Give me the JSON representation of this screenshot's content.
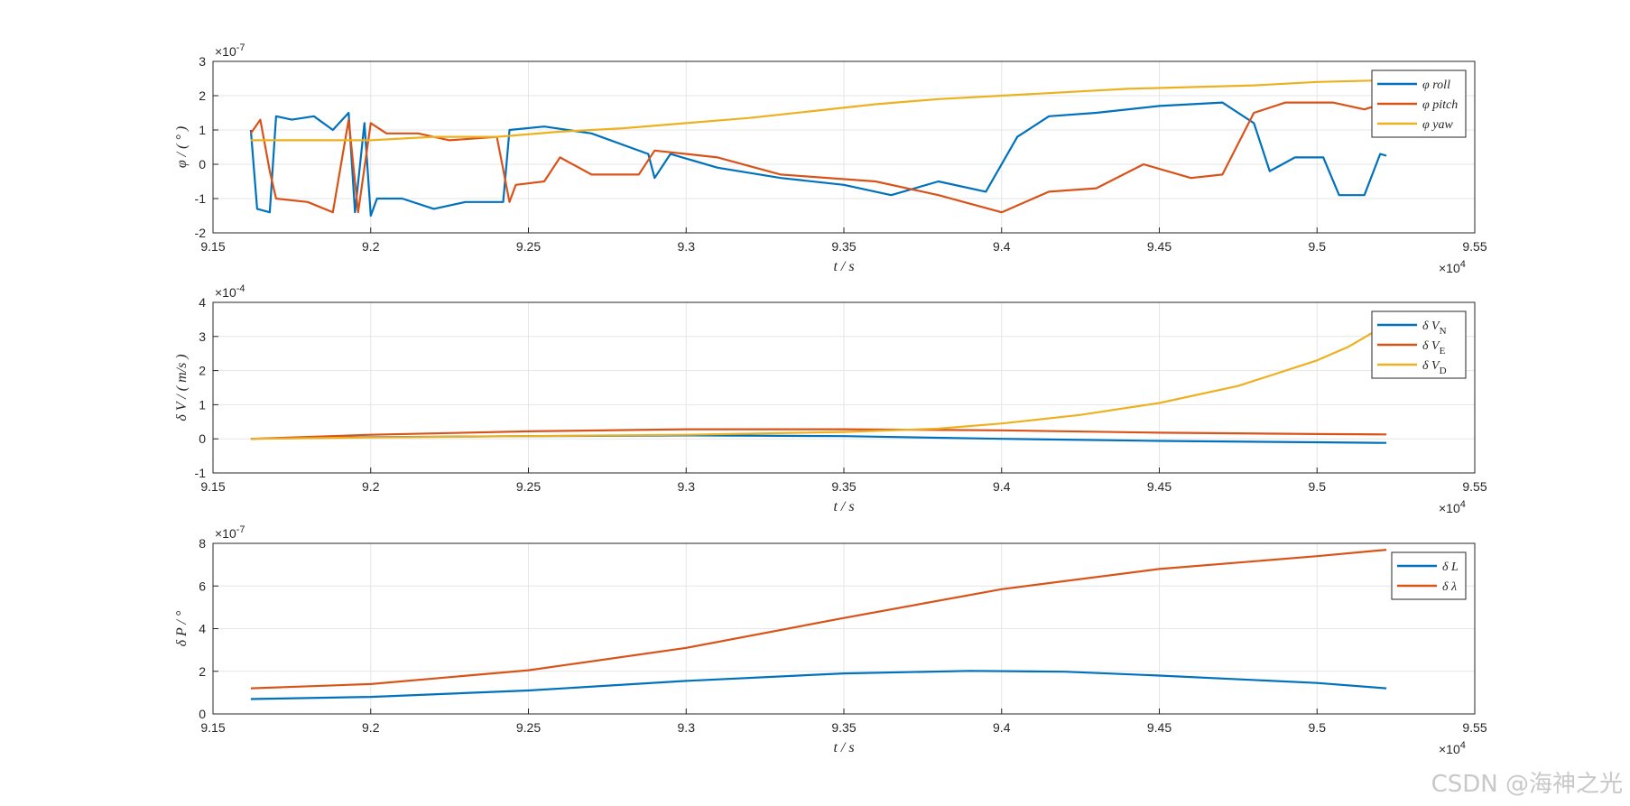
{
  "watermark": "CSDN @海神之光",
  "colors": {
    "series1": "#0072BD",
    "series2": "#D95319",
    "series3": "#EDB120",
    "grid": "#e6e6e6",
    "axis": "#262626"
  },
  "chart_data": [
    {
      "type": "line",
      "xlabel": "t  / s",
      "ylabel": "φ / ( ° )",
      "xlim": [
        91500,
        95500
      ],
      "ylim": [
        -2e-07,
        3e-07
      ],
      "xticks": [
        91500,
        92000,
        92500,
        93000,
        93500,
        94000,
        94500,
        95000,
        95500
      ],
      "xtick_labels": [
        "9.15",
        "9.2",
        "9.25",
        "9.3",
        "9.35",
        "9.4",
        "9.45",
        "9.5",
        "9.55"
      ],
      "x_exponent_label": "×10",
      "x_exponent_power": "4",
      "yticks": [
        -2,
        -1,
        0,
        1,
        2,
        3
      ],
      "ytick_labels": [
        "-2",
        "-1",
        "0",
        "1",
        "2",
        "3"
      ],
      "y_exponent_label": "×10",
      "y_exponent_power": "-7",
      "grid": true,
      "legend_position": "top-right",
      "series": [
        {
          "name": "φ roll",
          "values": [
            [
              91620,
              1e-07
            ],
            [
              91640,
              -1.3e-07
            ],
            [
              91680,
              -1.4e-07
            ],
            [
              91700,
              1.4e-07
            ],
            [
              91750,
              1.3e-07
            ],
            [
              91820,
              1.4e-07
            ],
            [
              91880,
              1e-07
            ],
            [
              91930,
              1.5e-07
            ],
            [
              91950,
              -1.4e-07
            ],
            [
              91980,
              1.2e-07
            ],
            [
              92000,
              -1.5e-07
            ],
            [
              92020,
              -1e-07
            ],
            [
              92100,
              -1e-07
            ],
            [
              92200,
              -1.3e-07
            ],
            [
              92300,
              -1.1e-07
            ],
            [
              92420,
              -1.1e-07
            ],
            [
              92440,
              1e-07
            ],
            [
              92550,
              1.1e-07
            ],
            [
              92700,
              9e-08
            ],
            [
              92880,
              3e-08
            ],
            [
              92900,
              -4e-08
            ],
            [
              92950,
              3e-08
            ],
            [
              93100,
              -1e-08
            ],
            [
              93300,
              -4e-08
            ],
            [
              93500,
              -6e-08
            ],
            [
              93650,
              -9e-08
            ],
            [
              93800,
              -5e-08
            ],
            [
              93950,
              -8e-08
            ],
            [
              94050,
              8e-08
            ],
            [
              94150,
              1.4e-07
            ],
            [
              94300,
              1.5e-07
            ],
            [
              94500,
              1.7e-07
            ],
            [
              94700,
              1.8e-07
            ],
            [
              94800,
              1.2e-07
            ],
            [
              94850,
              -2e-08
            ],
            [
              94930,
              2e-08
            ],
            [
              95020,
              2e-08
            ],
            [
              95070,
              -9e-08
            ],
            [
              95150,
              -9e-08
            ],
            [
              95200,
              3e-08
            ],
            [
              95220,
              2.5e-08
            ]
          ]
        },
        {
          "name": "φ pitch",
          "values": [
            [
              91620,
              9e-08
            ],
            [
              91650,
              1.3e-07
            ],
            [
              91680,
              -2e-08
            ],
            [
              91700,
              -1e-07
            ],
            [
              91800,
              -1.1e-07
            ],
            [
              91880,
              -1.4e-07
            ],
            [
              91930,
              1.3e-07
            ],
            [
              91960,
              -1.4e-07
            ],
            [
              92000,
              1.2e-07
            ],
            [
              92050,
              9e-08
            ],
            [
              92150,
              9e-08
            ],
            [
              92250,
              7e-08
            ],
            [
              92400,
              8e-08
            ],
            [
              92440,
              -1.1e-07
            ],
            [
              92460,
              -6e-08
            ],
            [
              92550,
              -5e-08
            ],
            [
              92600,
              2e-08
            ],
            [
              92700,
              -3e-08
            ],
            [
              92850,
              -3e-08
            ],
            [
              92900,
              4e-08
            ],
            [
              93100,
              2e-08
            ],
            [
              93300,
              -3e-08
            ],
            [
              93600,
              -5e-08
            ],
            [
              93800,
              -9e-08
            ],
            [
              94000,
              -1.4e-07
            ],
            [
              94150,
              -8e-08
            ],
            [
              94300,
              -7e-08
            ],
            [
              94450,
              0.0
            ],
            [
              94600,
              -4e-08
            ],
            [
              94700,
              -3e-08
            ],
            [
              94800,
              1.5e-07
            ],
            [
              94900,
              1.8e-07
            ],
            [
              95050,
              1.8e-07
            ],
            [
              95150,
              1.6e-07
            ],
            [
              95220,
              1.8e-07
            ]
          ]
        },
        {
          "name": "φ yaw",
          "values": [
            [
              91620,
              7e-08
            ],
            [
              91800,
              7e-08
            ],
            [
              92000,
              7e-08
            ],
            [
              92200,
              8e-08
            ],
            [
              92400,
              8e-08
            ],
            [
              92600,
              9.5e-08
            ],
            [
              92800,
              1.05e-07
            ],
            [
              93000,
              1.2e-07
            ],
            [
              93200,
              1.35e-07
            ],
            [
              93400,
              1.55e-07
            ],
            [
              93600,
              1.75e-07
            ],
            [
              93800,
              1.9e-07
            ],
            [
              94000,
              2e-07
            ],
            [
              94200,
              2.1e-07
            ],
            [
              94400,
              2.2e-07
            ],
            [
              94600,
              2.25e-07
            ],
            [
              94800,
              2.3e-07
            ],
            [
              95000,
              2.4e-07
            ],
            [
              95220,
              2.45e-07
            ]
          ]
        }
      ]
    },
    {
      "type": "line",
      "xlabel": "t  / s",
      "ylabel": "δ V / ( m/s )",
      "xlim": [
        91500,
        95500
      ],
      "ylim": [
        -0.0001,
        0.0004
      ],
      "xticks": [
        91500,
        92000,
        92500,
        93000,
        93500,
        94000,
        94500,
        95000,
        95500
      ],
      "xtick_labels": [
        "9.15",
        "9.2",
        "9.25",
        "9.3",
        "9.35",
        "9.4",
        "9.45",
        "9.5",
        "9.55"
      ],
      "x_exponent_label": "×10",
      "x_exponent_power": "4",
      "yticks": [
        -1,
        0,
        1,
        2,
        3,
        4
      ],
      "ytick_labels": [
        "-1",
        "0",
        "1",
        "2",
        "3",
        "4"
      ],
      "y_exponent_label": "×10",
      "y_exponent_power": "-4",
      "grid": true,
      "legend_position": "top-right",
      "series": [
        {
          "name": "δ V",
          "subscript": "N",
          "values": [
            [
              91620,
              0.0
            ],
            [
              92000,
              5e-06
            ],
            [
              92500,
              8e-06
            ],
            [
              93000,
              1e-05
            ],
            [
              93500,
              8e-06
            ],
            [
              94000,
              0.0
            ],
            [
              94500,
              -6e-06
            ],
            [
              95000,
              -1e-05
            ],
            [
              95220,
              -1.2e-05
            ]
          ]
        },
        {
          "name": "δ V",
          "subscript": "E",
          "values": [
            [
              91620,
              0.0
            ],
            [
              92000,
              1.2e-05
            ],
            [
              92500,
              2.2e-05
            ],
            [
              93000,
              2.8e-05
            ],
            [
              93500,
              2.8e-05
            ],
            [
              94000,
              2.5e-05
            ],
            [
              94500,
              1.8e-05
            ],
            [
              95000,
              1.4e-05
            ],
            [
              95220,
              1.3e-05
            ]
          ]
        },
        {
          "name": "δ V",
          "subscript": "D",
          "values": [
            [
              91620,
              0.0
            ],
            [
              92000,
              4e-06
            ],
            [
              92500,
              8e-06
            ],
            [
              93000,
              1.2e-05
            ],
            [
              93500,
              2e-05
            ],
            [
              93800,
              3e-05
            ],
            [
              94000,
              4.5e-05
            ],
            [
              94250,
              7e-05
            ],
            [
              94500,
              0.000105
            ],
            [
              94750,
              0.000155
            ],
            [
              95000,
              0.00023
            ],
            [
              95100,
              0.00027
            ],
            [
              95220,
              0.000335
            ]
          ]
        }
      ]
    },
    {
      "type": "line",
      "xlabel": "t  / s",
      "ylabel": "δ P / °",
      "xlim": [
        91500,
        95500
      ],
      "ylim": [
        0,
        8e-07
      ],
      "xticks": [
        91500,
        92000,
        92500,
        93000,
        93500,
        94000,
        94500,
        95000,
        95500
      ],
      "xtick_labels": [
        "9.15",
        "9.2",
        "9.25",
        "9.3",
        "9.35",
        "9.4",
        "9.45",
        "9.5",
        "9.55"
      ],
      "x_exponent_label": "×10",
      "x_exponent_power": "4",
      "yticks": [
        0,
        2,
        4,
        6,
        8
      ],
      "ytick_labels": [
        "0",
        "2",
        "4",
        "6",
        "8"
      ],
      "y_exponent_label": "×10",
      "y_exponent_power": "-7",
      "grid": true,
      "legend_position": "top-right",
      "series": [
        {
          "name": "δ L",
          "values": [
            [
              91620,
              7e-08
            ],
            [
              92000,
              8e-08
            ],
            [
              92500,
              1.1e-07
            ],
            [
              93000,
              1.55e-07
            ],
            [
              93500,
              1.9e-07
            ],
            [
              93900,
              2.02e-07
            ],
            [
              94200,
              1.98e-07
            ],
            [
              94500,
              1.8e-07
            ],
            [
              95000,
              1.45e-07
            ],
            [
              95220,
              1.2e-07
            ]
          ]
        },
        {
          "name": "δ λ",
          "values": [
            [
              91620,
              1.2e-07
            ],
            [
              92000,
              1.4e-07
            ],
            [
              92500,
              2.05e-07
            ],
            [
              93000,
              3.1e-07
            ],
            [
              93500,
              4.5e-07
            ],
            [
              94000,
              5.85e-07
            ],
            [
              94500,
              6.8e-07
            ],
            [
              95000,
              7.4e-07
            ],
            [
              95220,
              7.7e-07
            ]
          ]
        }
      ]
    }
  ]
}
